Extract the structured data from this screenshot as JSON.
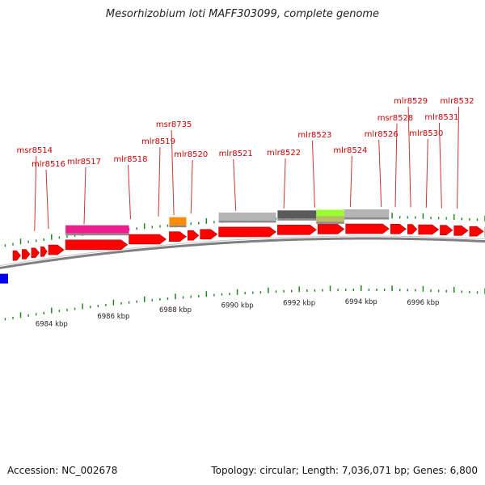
{
  "title": "Mesorhizobium loti MAFF303099, complete genome",
  "footer": {
    "accession": "Accession: NC_002678",
    "stats": "Topology: circular; Length: 7,036,071 bp; Genes: 6,800"
  },
  "axis": {
    "unit": "kbp",
    "ticks": [
      {
        "kbp": 6984,
        "label": "6984 kbp"
      },
      {
        "kbp": 6986,
        "label": "6986 kbp"
      },
      {
        "kbp": 6988,
        "label": "6988 kbp"
      },
      {
        "kbp": 6990,
        "label": "6990 kbp"
      },
      {
        "kbp": 6992,
        "label": "6992 kbp"
      },
      {
        "kbp": 6994,
        "label": "6994 kbp"
      },
      {
        "kbp": 6996,
        "label": "6996 kbp"
      }
    ]
  },
  "colors": {
    "gene": "#ff0000",
    "label": "#cc0000",
    "backbone": "#808080",
    "tick": "#1a8a1a",
    "magenta": "#ee1c8c",
    "orange": "#ff8c00",
    "light_gray": "#b4b4b4",
    "dark_gray": "#5a5a5a",
    "lime": "#99ff33",
    "olive": "#bbbb66",
    "blue": "#0000ee"
  },
  "gene_labels": [
    {
      "name": "msr8514",
      "kbp": 6983.45
    },
    {
      "name": "mlr8516",
      "kbp": 6983.9
    },
    {
      "name": "mlr8517",
      "kbp": 6985.05
    },
    {
      "name": "mlr8518",
      "kbp": 6986.55
    },
    {
      "name": "mlr8519",
      "kbp": 6987.45
    },
    {
      "name": "msr8735",
      "kbp": 6987.95
    },
    {
      "name": "mlr8520",
      "kbp": 6988.5
    },
    {
      "name": "mlr8521",
      "kbp": 6989.95
    },
    {
      "name": "mlr8522",
      "kbp": 6991.5
    },
    {
      "name": "mlr8523",
      "kbp": 6992.5
    },
    {
      "name": "mlr8524",
      "kbp": 6993.65
    },
    {
      "name": "mlr8526",
      "kbp": 6994.65
    },
    {
      "name": "msr8528",
      "kbp": 6995.1
    },
    {
      "name": "mlr8529",
      "kbp": 6995.6
    },
    {
      "name": "mlr8530",
      "kbp": 6996.1
    },
    {
      "name": "mlr8531",
      "kbp": 6996.6
    },
    {
      "name": "mlr8532",
      "kbp": 6997.1
    }
  ],
  "genes": [
    {
      "start": 6982.75,
      "end": 6983.0,
      "strand": 1
    },
    {
      "start": 6983.05,
      "end": 6983.3,
      "strand": 1
    },
    {
      "start": 6983.35,
      "end": 6983.6,
      "strand": 1
    },
    {
      "start": 6983.65,
      "end": 6983.85,
      "strand": 1
    },
    {
      "start": 6983.9,
      "end": 6984.4,
      "strand": 1
    },
    {
      "start": 6984.45,
      "end": 6986.45,
      "strand": 1
    },
    {
      "start": 6986.5,
      "end": 6987.7,
      "strand": 1
    },
    {
      "start": 6987.8,
      "end": 6988.35,
      "strand": 1
    },
    {
      "start": 6988.4,
      "end": 6988.75,
      "strand": 1
    },
    {
      "start": 6988.8,
      "end": 6989.35,
      "strand": 1
    },
    {
      "start": 6989.4,
      "end": 6991.25,
      "strand": 1
    },
    {
      "start": 6991.3,
      "end": 6992.55,
      "strand": 1
    },
    {
      "start": 6992.6,
      "end": 6993.45,
      "strand": 1
    },
    {
      "start": 6993.5,
      "end": 6994.9,
      "strand": 1
    },
    {
      "start": 6994.95,
      "end": 6995.45,
      "strand": 1
    },
    {
      "start": 6995.5,
      "end": 6995.8,
      "strand": 1
    },
    {
      "start": 6995.85,
      "end": 6996.5,
      "strand": 1
    },
    {
      "start": 6996.55,
      "end": 6996.95,
      "strand": 1
    },
    {
      "start": 6997.0,
      "end": 6997.45,
      "strand": 1
    },
    {
      "start": 6997.5,
      "end": 6997.95,
      "strand": 1
    },
    {
      "start": 6998.0,
      "end": 6998.5,
      "strand": 1
    }
  ],
  "features": [
    {
      "start": 6984.45,
      "end": 6986.5,
      "color": "#ee1c8c",
      "row": 0
    },
    {
      "start": 6987.8,
      "end": 6988.35,
      "color": "#ff8c00",
      "row": 0
    },
    {
      "start": 6989.4,
      "end": 6991.25,
      "color": "#b4b4b4",
      "row": 0
    },
    {
      "start": 6991.3,
      "end": 6992.55,
      "color": "#5a5a5a",
      "row": 0
    },
    {
      "start": 6992.55,
      "end": 6993.45,
      "color": "#99ff33",
      "row": 0
    },
    {
      "start": 6992.55,
      "end": 6993.45,
      "color": "#bbbb66",
      "row": 1
    },
    {
      "start": 6993.45,
      "end": 6994.9,
      "color": "#b4b4b4",
      "row": 0
    }
  ],
  "reverse_genes": [
    {
      "start": 6982.5,
      "end": 6982.75,
      "strand": -1
    }
  ]
}
